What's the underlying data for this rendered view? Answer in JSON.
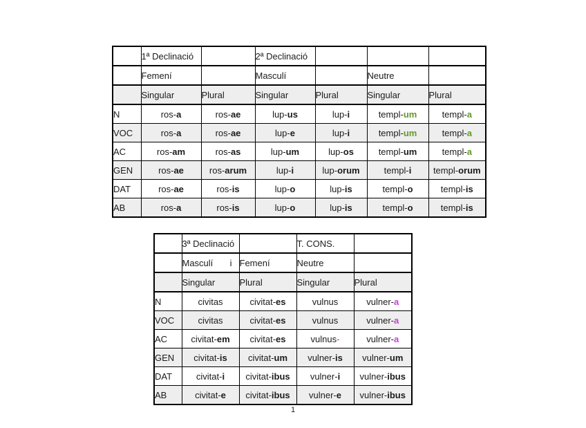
{
  "page_number": "1",
  "colors": {
    "green": "#64992e",
    "magenta": "#c63fd8",
    "red": "#cc3a28",
    "shaded_row_bg": "#eeeeee",
    "border": "#000000"
  },
  "tables": [
    {
      "id": "first-second-declension",
      "title_row": [
        "",
        "1ª Declinació",
        "",
        "2ª Declinació",
        "",
        "",
        ""
      ],
      "gender_row": [
        "",
        "Femení",
        "",
        "Masculí",
        "",
        "Neutre",
        ""
      ],
      "number_row": [
        "",
        "Singular",
        "Plural",
        "Singular",
        "Plural",
        "Singular",
        "Plural"
      ],
      "rows": [
        {
          "case": "N",
          "forms": [
            {
              "stem": "ros-",
              "end": "a"
            },
            {
              "stem": "ros-",
              "end": "ae"
            },
            {
              "stem": "lup-",
              "end": "us"
            },
            {
              "stem": "lup-",
              "end": "i"
            },
            {
              "stem": "templ-",
              "end": "um",
              "color": "green"
            },
            {
              "stem": "templ-",
              "end": "a",
              "color": "green"
            }
          ]
        },
        {
          "case": "VOC",
          "forms": [
            {
              "stem": "ros-",
              "end": "a"
            },
            {
              "stem": "ros-",
              "end": "ae"
            },
            {
              "stem": "lup-",
              "end": "e"
            },
            {
              "stem": "lup-",
              "end": "i"
            },
            {
              "stem": "templ-",
              "end": "um",
              "color": "green"
            },
            {
              "stem": "templ-",
              "end": "a",
              "color": "green"
            }
          ]
        },
        {
          "case": "AC",
          "forms": [
            {
              "stem": "ros-",
              "end": "am"
            },
            {
              "stem": "ros-",
              "end": "as"
            },
            {
              "stem": "lup-",
              "end": "um"
            },
            {
              "stem": "lup-",
              "end": "os"
            },
            {
              "stem": "templ-",
              "end": "um"
            },
            {
              "stem": "templ-",
              "end": "a",
              "color": "green"
            }
          ]
        },
        {
          "case": "GEN",
          "forms": [
            {
              "stem": "ros-",
              "end": "ae"
            },
            {
              "stem": "ros-",
              "end": "arum"
            },
            {
              "stem": "lup-",
              "end": "i"
            },
            {
              "stem": "lup-",
              "end": "orum"
            },
            {
              "stem": "templ-",
              "end": "i"
            },
            {
              "stem": "templ-",
              "end": "orum"
            }
          ]
        },
        {
          "case": "DAT",
          "forms": [
            {
              "stem": "ros-",
              "end": "ae"
            },
            {
              "stem": "ros-",
              "end": "is"
            },
            {
              "stem": "lup-",
              "end": "o"
            },
            {
              "stem": "lup-",
              "end": "is"
            },
            {
              "stem": "templ-",
              "end": "o"
            },
            {
              "stem": "templ-",
              "end": "is"
            }
          ]
        },
        {
          "case": "AB",
          "forms": [
            {
              "stem": "ros-",
              "end": "a"
            },
            {
              "stem": "ros-",
              "end": "is"
            },
            {
              "stem": "lup-",
              "end": "o"
            },
            {
              "stem": "lup-",
              "end": "is"
            },
            {
              "stem": "templ-",
              "end": "o"
            },
            {
              "stem": "templ-",
              "end": "is"
            }
          ]
        }
      ]
    },
    {
      "id": "third-declension",
      "title_row": [
        "",
        "3ª Declinació",
        "",
        "T. CONS.",
        ""
      ],
      "gender_row": [
        "",
        {
          "text": "Masculí",
          "right": "i"
        },
        "Femení",
        "Neutre",
        ""
      ],
      "number_row": [
        "",
        "Singular",
        "Plural",
        "Singular",
        "Plural"
      ],
      "rows": [
        {
          "case": "N",
          "forms": [
            {
              "stem": "civitas",
              "end": ""
            },
            {
              "stem": "civitat-",
              "end": "es"
            },
            {
              "stem": "vulnus",
              "end": ""
            },
            {
              "stem": "vulner-",
              "end": "a",
              "color": "magenta"
            }
          ]
        },
        {
          "case": "VOC",
          "forms": [
            {
              "stem": "civitas",
              "end": ""
            },
            {
              "stem": "civitat-",
              "end": "es"
            },
            {
              "stem": "vulnus",
              "end": ""
            },
            {
              "stem": "vulner-",
              "end": "a",
              "color": "magenta"
            }
          ]
        },
        {
          "case": "AC",
          "forms": [
            {
              "stem": "civitat-",
              "end": "em"
            },
            {
              "stem": "civitat-",
              "end": "es"
            },
            {
              "stem": "vulnus",
              "end": "-",
              "color": "red"
            },
            {
              "stem": "vulner-",
              "end": "a",
              "color": "magenta"
            }
          ]
        },
        {
          "case": "GEN",
          "forms": [
            {
              "stem": "civitat-",
              "end": "is"
            },
            {
              "stem": "civitat-",
              "end": "um"
            },
            {
              "stem": "vulner-",
              "end": "is"
            },
            {
              "stem": "vulner-",
              "end": "um"
            }
          ]
        },
        {
          "case": "DAT",
          "forms": [
            {
              "stem": "civitat-",
              "end": "i"
            },
            {
              "stem": "civitat-",
              "end": "ibus"
            },
            {
              "stem": "vulner-",
              "end": "i"
            },
            {
              "stem": "vulner-",
              "end": "ibus"
            }
          ]
        },
        {
          "case": "AB",
          "forms": [
            {
              "stem": "civitat-",
              "end": "e"
            },
            {
              "stem": "civitat-",
              "end": "ibus"
            },
            {
              "stem": "vulner-",
              "end": "e"
            },
            {
              "stem": "vulner-",
              "end": "ibus"
            }
          ]
        }
      ]
    }
  ]
}
